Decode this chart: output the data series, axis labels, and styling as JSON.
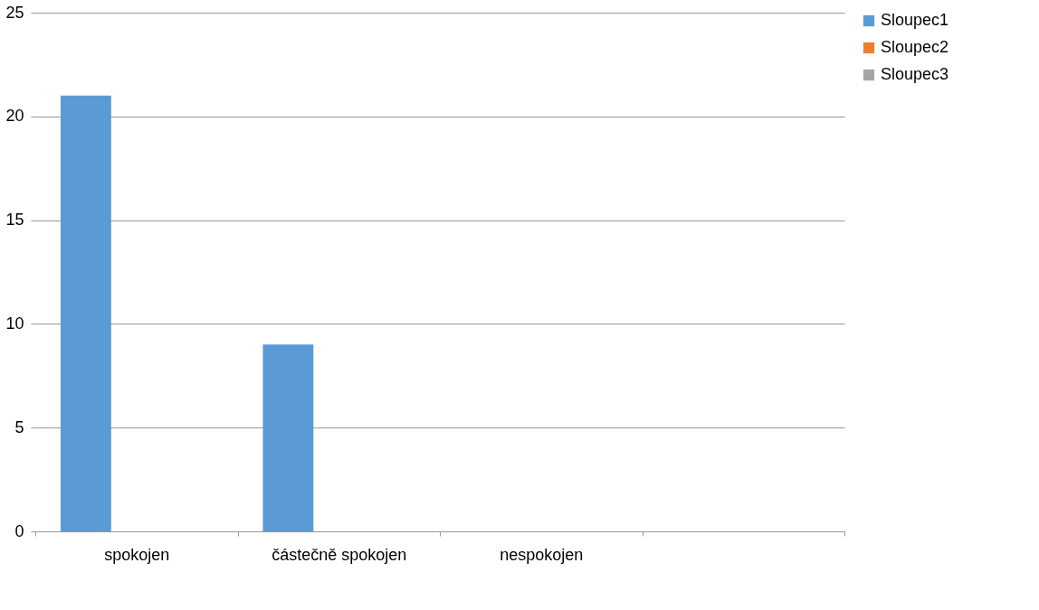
{
  "chart_data": {
    "type": "bar",
    "categories": [
      "spokojen",
      "částečně spokojen",
      "nespokojen",
      null
    ],
    "series": [
      {
        "name": "Sloupec1",
        "color": "#5b9bd5",
        "values": [
          21,
          9,
          null,
          null
        ]
      },
      {
        "name": "Sloupec2",
        "color": "#ed7d31",
        "values": [
          null,
          null,
          null,
          null
        ]
      },
      {
        "name": "Sloupec3",
        "color": "#a5a5a5",
        "values": [
          null,
          null,
          null,
          null
        ]
      }
    ],
    "ylim": [
      0,
      25
    ],
    "yticks": [
      0,
      5,
      10,
      15,
      20,
      25
    ],
    "grid": "y",
    "legend": "right"
  }
}
